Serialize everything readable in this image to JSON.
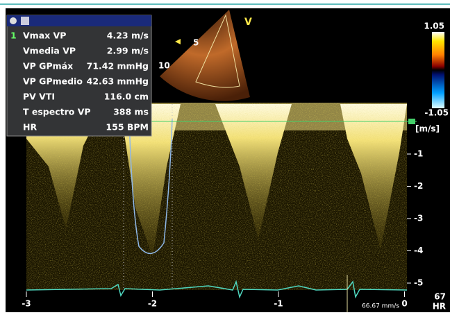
{
  "panel": {
    "index": "1",
    "rows": [
      {
        "label": "Vmax VP",
        "value": "4.23 m/s"
      },
      {
        "label": "Vmedia VP",
        "value": "2.99 m/s"
      },
      {
        "label": "VP GPmáx",
        "value": "71.42 mmHg"
      },
      {
        "label": "VP GPmedio",
        "value": "42.63 mmHg"
      },
      {
        "label": "PV VTI",
        "value": "116.0 cm"
      },
      {
        "label": "T espectro VP",
        "value": "388 ms"
      },
      {
        "label": "HR",
        "value": "155 BPM"
      }
    ]
  },
  "sector": {
    "view": "V",
    "depth_marks": [
      "5",
      "10"
    ]
  },
  "color_bar": {
    "max": "1.05",
    "min": "-1.05"
  },
  "velocity_axis": {
    "unit": "[m/s]",
    "ticks": [
      "-1",
      "-2",
      "-3",
      "-4",
      "-5"
    ]
  },
  "time_axis": {
    "ticks": [
      "-3",
      "-2",
      "-1",
      "0"
    ],
    "sweep": "66.67 mm/s"
  },
  "heart_rate": {
    "value": "67",
    "unit": "HR"
  }
}
